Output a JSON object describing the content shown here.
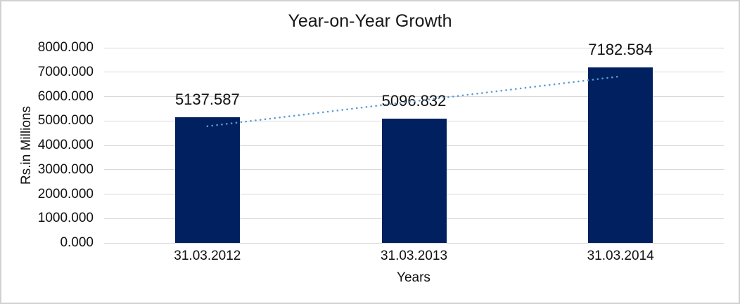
{
  "window": {
    "background": "#FFFFFF",
    "border_color": "#D1D1D1"
  },
  "chart_data": {
    "type": "bar",
    "title": "Year-on-Year Growth",
    "xlabel": "Years",
    "ylabel": "Rs.in Millions",
    "categories": [
      "31.03.2012",
      "31.03.2013",
      "31.03.2014"
    ],
    "values": [
      5137.587,
      5096.832,
      7182.584
    ],
    "data_labels": [
      "5137.587",
      "5096.832",
      "7182.584"
    ],
    "ylim": [
      0,
      8000
    ],
    "ytick_step": 1000,
    "ytick_labels": [
      "8000.000",
      "7000.000",
      "6000.000",
      "5000.000",
      "4000.000",
      "3000.000",
      "2000.000",
      "1000.000",
      "0.000"
    ],
    "grid": true,
    "legend": "none",
    "bar_color": "#002060",
    "gridline_color": "#D9D9D9",
    "trendline": {
      "type": "linear",
      "style": "dotted",
      "color": "#5B9BD5",
      "spans_categories": [
        1,
        3
      ]
    }
  }
}
